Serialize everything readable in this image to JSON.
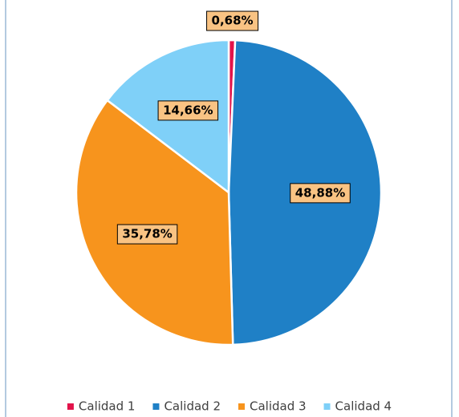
{
  "chart_data": {
    "type": "pie",
    "categories": [
      "Calidad 1",
      "Calidad 2",
      "Calidad 3",
      "Calidad 4"
    ],
    "values": [
      0.68,
      48.88,
      35.78,
      14.66
    ],
    "value_labels": [
      "0,68%",
      "48,88%",
      "35,78%",
      "14,66%"
    ],
    "colors": [
      "#e2134a",
      "#1f80c6",
      "#f7941d",
      "#7fd0f8"
    ],
    "legend": "bottom"
  }
}
